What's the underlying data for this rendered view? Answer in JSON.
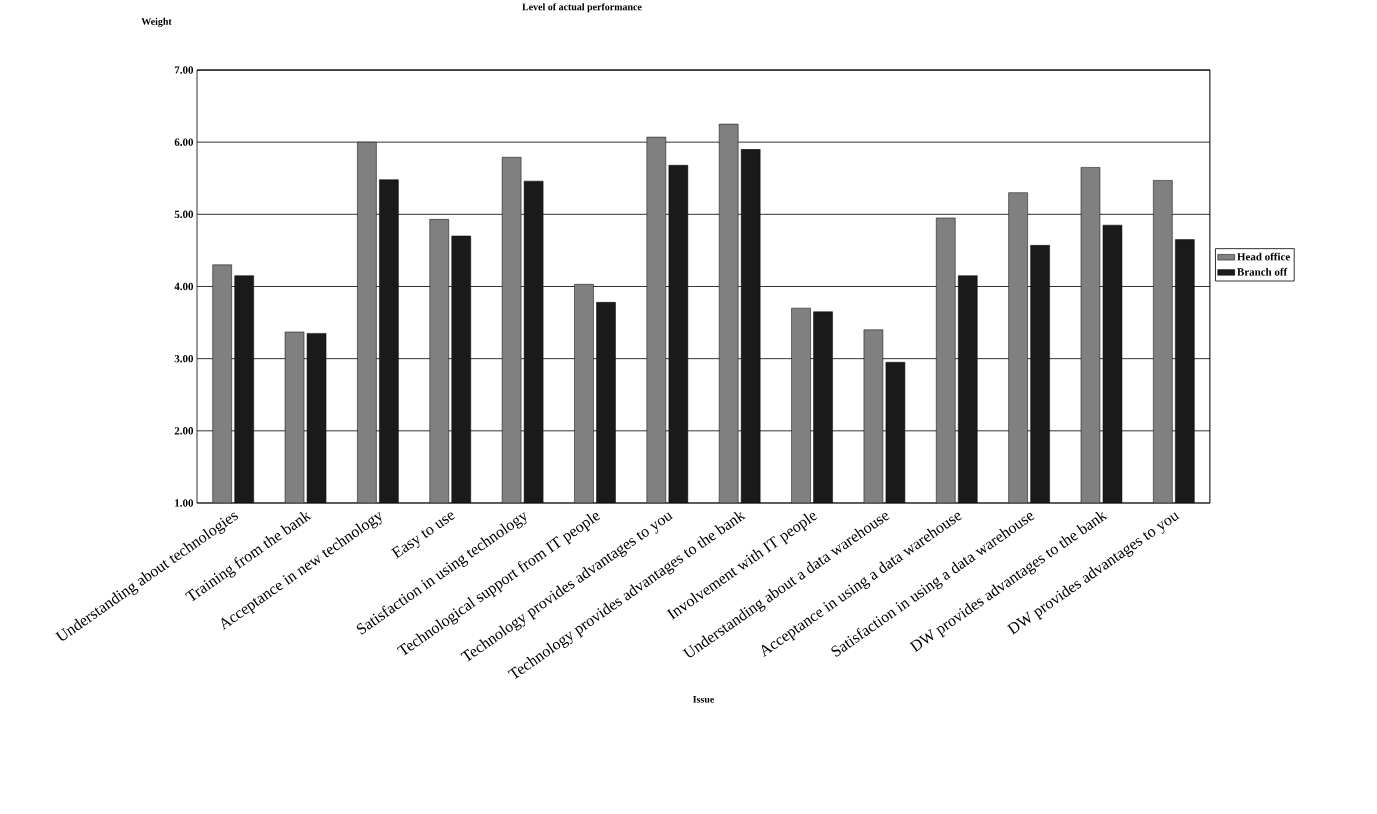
{
  "chart_data": {
    "type": "bar",
    "title": "Level of actual performance",
    "ylabel": "Weight",
    "xlabel": "Issue",
    "categories": [
      "Understanding about technologies",
      "Training from the bank",
      "Acceptance in new technology",
      "Easy to use",
      "Satisfaction in using technology",
      "Technological support from IT people",
      "Technology provides advantages to you",
      "Technology provides advantages to the bank",
      "Involvement with IT people",
      "Understanding about a data warehouse",
      "Acceptance in using a data warehouse",
      "Satisfaction in using a data warehouse",
      "DW provides advantages to the bank",
      "DW provides advantages to you"
    ],
    "series": [
      {
        "name": "Head office",
        "color": "#808080",
        "values": [
          4.3,
          3.37,
          6.0,
          4.93,
          5.79,
          4.03,
          6.07,
          6.25,
          3.7,
          3.4,
          4.95,
          5.3,
          5.65,
          5.47
        ]
      },
      {
        "name": "Branch off",
        "color": "#1a1a1a",
        "values": [
          4.15,
          3.35,
          5.48,
          4.7,
          5.46,
          3.78,
          5.68,
          5.9,
          3.65,
          2.95,
          4.15,
          4.57,
          4.85,
          4.65
        ]
      }
    ],
    "ylim": [
      1,
      7
    ],
    "yticks": [
      {
        "value": 1,
        "label": "1.00"
      },
      {
        "value": 2,
        "label": "2.00"
      },
      {
        "value": 3,
        "label": "3.00"
      },
      {
        "value": 4,
        "label": "4.00"
      },
      {
        "value": 5,
        "label": "5.00"
      },
      {
        "value": 6,
        "label": "6.00"
      },
      {
        "value": 7,
        "label": "7.00"
      }
    ],
    "grid": "y",
    "legend": "right"
  }
}
